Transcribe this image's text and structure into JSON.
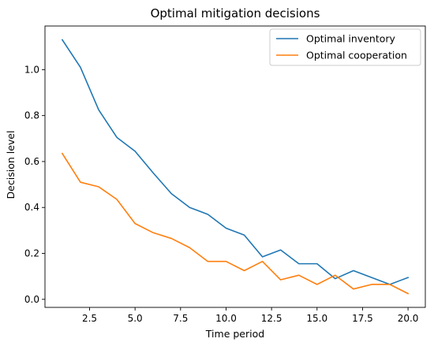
{
  "chart_data": {
    "type": "line",
    "title": "Optimal mitigation decisions",
    "xlabel": "Time period",
    "ylabel": "Decision level",
    "x": [
      1,
      2,
      3,
      4,
      5,
      6,
      7,
      8,
      9,
      10,
      11,
      12,
      13,
      14,
      15,
      16,
      17,
      18,
      19,
      20
    ],
    "xlim": [
      0.05,
      20.95
    ],
    "ylim": [
      -0.035,
      1.19
    ],
    "xticks": [
      2.5,
      5.0,
      7.5,
      10.0,
      12.5,
      15.0,
      17.5,
      20.0
    ],
    "xtick_labels": [
      "2.5",
      "5.0",
      "7.5",
      "10.0",
      "12.5",
      "15.0",
      "17.5",
      "20.0"
    ],
    "yticks": [
      0.0,
      0.2,
      0.4,
      0.6,
      0.8,
      1.0
    ],
    "ytick_labels": [
      "0.0",
      "0.2",
      "0.4",
      "0.6",
      "0.8",
      "1.0"
    ],
    "grid": false,
    "legend_position": "top-right",
    "series": [
      {
        "name": "Optimal inventory",
        "color": "#1f77b4",
        "values": [
          1.13,
          1.01,
          0.825,
          0.705,
          0.645,
          0.55,
          0.46,
          0.4,
          0.37,
          0.31,
          0.28,
          0.185,
          0.215,
          0.155,
          0.155,
          0.09,
          0.125,
          0.095,
          0.065,
          0.095
        ]
      },
      {
        "name": "Optimal cooperation",
        "color": "#ff7f0e",
        "values": [
          0.635,
          0.51,
          0.49,
          0.435,
          0.33,
          0.29,
          0.265,
          0.225,
          0.165,
          0.165,
          0.125,
          0.165,
          0.085,
          0.105,
          0.065,
          0.105,
          0.045,
          0.065,
          0.065,
          0.025
        ]
      }
    ]
  }
}
